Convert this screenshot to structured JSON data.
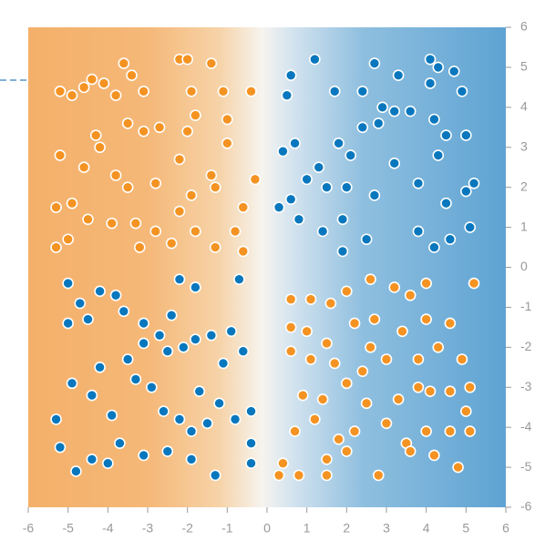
{
  "chart_data": {
    "type": "scatter",
    "xlim": [
      -6,
      6
    ],
    "ylim": [
      -6,
      6
    ],
    "xticks": [
      -6,
      -5,
      -4,
      -3,
      -2,
      -1,
      0,
      1,
      2,
      3,
      4,
      5,
      6
    ],
    "yticks": [
      -6,
      -5,
      -4,
      -3,
      -2,
      -1,
      0,
      1,
      2,
      3,
      4,
      5,
      6
    ],
    "series": [
      {
        "color": "#f59322",
        "x": [
          -5.2,
          -4.9,
          -4.6,
          -4.4,
          -4.1,
          -3.8,
          -3.6,
          -3.4,
          -3.1,
          -2.2,
          -2.0,
          -1.9,
          -1.4,
          -1.1,
          -0.4,
          -4.3,
          -4.2,
          -3.5,
          -3.1,
          -2.7,
          -2.0,
          -1.8,
          -1.0,
          -1.0,
          -5.2,
          -4.6,
          -3.8,
          -3.5,
          -2.8,
          -2.2,
          -1.9,
          -1.3,
          -0.3,
          -5.3,
          -4.9,
          -4.5,
          -3.9,
          -3.3,
          -2.8,
          -2.2,
          -1.8,
          -1.3,
          -0.8,
          -5.3,
          -5.0,
          -3.2,
          -2.4,
          -0.6,
          -0.6,
          -1.4,
          0.6,
          1.1,
          1.6,
          2.0,
          2.6,
          3.2,
          3.6,
          4.0,
          5.2,
          0.6,
          1.0,
          1.5,
          2.2,
          2.7,
          3.4,
          4.0,
          4.6,
          0.6,
          1.1,
          1.7,
          2.4,
          2.6,
          3.0,
          3.8,
          4.3,
          4.9,
          0.9,
          1.4,
          2.0,
          2.5,
          3.3,
          3.8,
          4.1,
          4.6,
          5.1,
          0.7,
          1.2,
          1.8,
          2.2,
          3.0,
          3.5,
          4.0,
          4.6,
          5.1,
          0.4,
          0.8,
          1.5,
          2.0,
          2.8,
          3.6,
          4.2,
          4.8,
          0.3,
          1.5,
          5.0
        ],
        "values": [
          4.4,
          4.3,
          4.5,
          4.7,
          4.6,
          4.3,
          5.1,
          4.8,
          4.4,
          5.2,
          5.2,
          4.4,
          5.1,
          4.4,
          4.4,
          3.3,
          3.0,
          3.6,
          3.4,
          3.5,
          3.4,
          3.8,
          3.7,
          3.1,
          2.8,
          2.5,
          2.3,
          2.0,
          2.1,
          2.7,
          1.8,
          2.0,
          2.2,
          1.5,
          1.6,
          1.2,
          1.1,
          1.1,
          0.9,
          1.4,
          0.9,
          0.5,
          0.9,
          0.5,
          0.7,
          0.5,
          0.6,
          0.4,
          1.5,
          2.3,
          -0.8,
          -0.8,
          -0.9,
          -0.6,
          -0.3,
          -0.5,
          -0.7,
          -0.4,
          -0.4,
          -1.5,
          -1.6,
          -1.9,
          -1.4,
          -1.3,
          -1.6,
          -1.3,
          -1.4,
          -2.1,
          -2.3,
          -2.4,
          -2.6,
          -2.0,
          -2.3,
          -2.3,
          -2.0,
          -2.3,
          -3.2,
          -3.3,
          -2.9,
          -3.4,
          -3.3,
          -3.0,
          -3.1,
          -3.1,
          -3.0,
          -4.1,
          -3.8,
          -4.3,
          -4.1,
          -3.9,
          -4.4,
          -4.1,
          -4.1,
          -4.1,
          -4.9,
          -5.2,
          -4.8,
          -4.6,
          -5.2,
          -4.6,
          -4.7,
          -5.0,
          -5.2,
          -5.2,
          -3.6
        ]
      },
      {
        "color": "#0877bd",
        "x": [
          0.5,
          0.6,
          1.2,
          1.7,
          2.4,
          2.7,
          3.3,
          4.1,
          4.3,
          4.7,
          4.9,
          4.1,
          0.7,
          0.4,
          1.3,
          1.8,
          2.1,
          2.4,
          2.8,
          3.2,
          3.6,
          4.2,
          4.5,
          5.0,
          0.6,
          1.0,
          1.5,
          2.0,
          2.7,
          3.8,
          4.5,
          5.0,
          5.2,
          0.3,
          0.8,
          1.4,
          1.9,
          2.5,
          3.8,
          4.2,
          4.6,
          5.1,
          3.2,
          4.3,
          1.9,
          2.9,
          -5.0,
          -4.7,
          -4.5,
          -4.2,
          -3.8,
          -3.6,
          -3.1,
          -2.7,
          -2.4,
          -2.2,
          -1.8,
          -1.4,
          -0.9,
          -0.7,
          -5.0,
          -4.2,
          -3.5,
          -3.1,
          -2.5,
          -2.1,
          -1.8,
          -1.1,
          -0.6,
          -5.3,
          -4.9,
          -4.4,
          -3.9,
          -3.3,
          -2.9,
          -2.6,
          -2.2,
          -1.7,
          -1.5,
          -1.2,
          -0.8,
          -0.4,
          -5.2,
          -4.8,
          -4.4,
          -4.0,
          -3.7,
          -3.1,
          -2.5,
          -1.9,
          -1.3,
          -0.4,
          -1.9,
          -0.4
        ],
        "values": [
          4.3,
          4.8,
          5.2,
          4.4,
          4.4,
          5.1,
          4.8,
          5.2,
          5.0,
          4.9,
          4.4,
          4.6,
          3.1,
          2.9,
          2.5,
          3.1,
          2.8,
          3.5,
          3.6,
          3.9,
          3.9,
          3.7,
          3.3,
          3.3,
          1.7,
          2.2,
          2.0,
          2.0,
          1.8,
          2.1,
          1.6,
          1.9,
          2.1,
          1.5,
          1.2,
          0.9,
          1.2,
          0.7,
          0.9,
          0.5,
          0.7,
          1.0,
          2.6,
          2.8,
          0.4,
          4.0,
          -0.4,
          -0.9,
          -1.3,
          -0.6,
          -0.7,
          -1.1,
          -1.4,
          -1.7,
          -1.2,
          -0.3,
          -0.5,
          -1.7,
          -1.6,
          -0.3,
          -1.4,
          -2.5,
          -2.3,
          -1.9,
          -2.1,
          -2.0,
          -1.8,
          -2.4,
          -2.1,
          -3.8,
          -2.9,
          -3.2,
          -3.7,
          -2.8,
          -3.0,
          -3.6,
          -3.8,
          -3.1,
          -3.9,
          -3.4,
          -3.8,
          -3.6,
          -4.5,
          -5.1,
          -4.8,
          -4.9,
          -4.4,
          -4.7,
          -4.6,
          -4.8,
          -5.2,
          -4.9,
          -4.1,
          -4.4
        ]
      }
    ]
  }
}
